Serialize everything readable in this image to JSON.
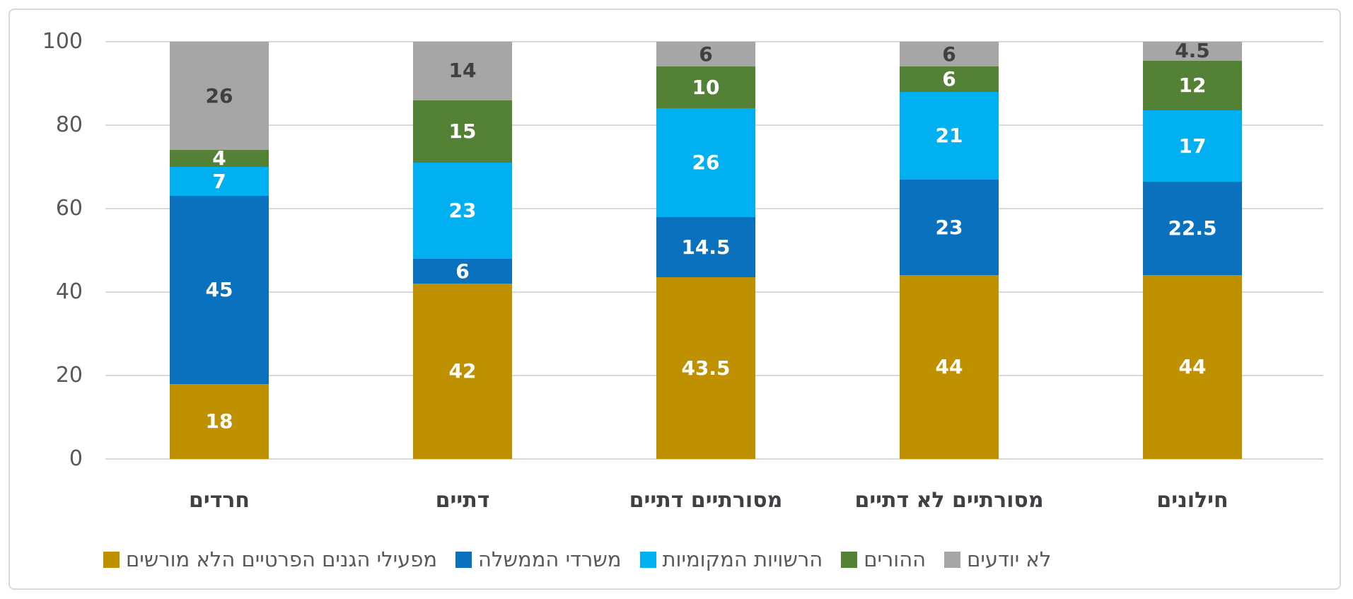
{
  "chart_data": {
    "type": "bar",
    "stacked": true,
    "title": "",
    "categories": [
      "חרדים",
      "דתיים",
      "מסורתיים דתיים",
      "מסורתיים לא דתיים",
      "חילונים"
    ],
    "series": [
      {
        "name": "מפעילי הגנים הפרטיים הלא מורשים",
        "color": "#BF9000",
        "label_color": "#FFFFFF",
        "values": [
          18,
          42,
          43.5,
          44,
          44
        ]
      },
      {
        "name": "משרדי הממשלה",
        "color": "#0971BE",
        "label_color": "#FFFFFF",
        "values": [
          45,
          6,
          14.5,
          23,
          22.5
        ]
      },
      {
        "name": "הרשויות המקומיות",
        "color": "#00B0F0",
        "label_color": "#FFFFFF",
        "values": [
          7,
          23,
          26,
          21,
          17
        ]
      },
      {
        "name": "ההורים",
        "color": "#538135",
        "label_color": "#FFFFFF",
        "values": [
          4,
          15,
          10,
          6,
          12
        ]
      },
      {
        "name": "לא יודעים",
        "color": "#A6A6A6",
        "label_color": "#404040",
        "values": [
          26,
          14,
          6,
          6,
          4.5
        ]
      }
    ],
    "y_axis": {
      "min": 0,
      "max": 100,
      "ticks": [
        0,
        20,
        40,
        60,
        80,
        100
      ]
    },
    "grid": true,
    "gridline_color": "#D9D9D9",
    "axis_tick_color": "#595959",
    "category_label_color": "#3F4043",
    "legend_position": "bottom"
  }
}
